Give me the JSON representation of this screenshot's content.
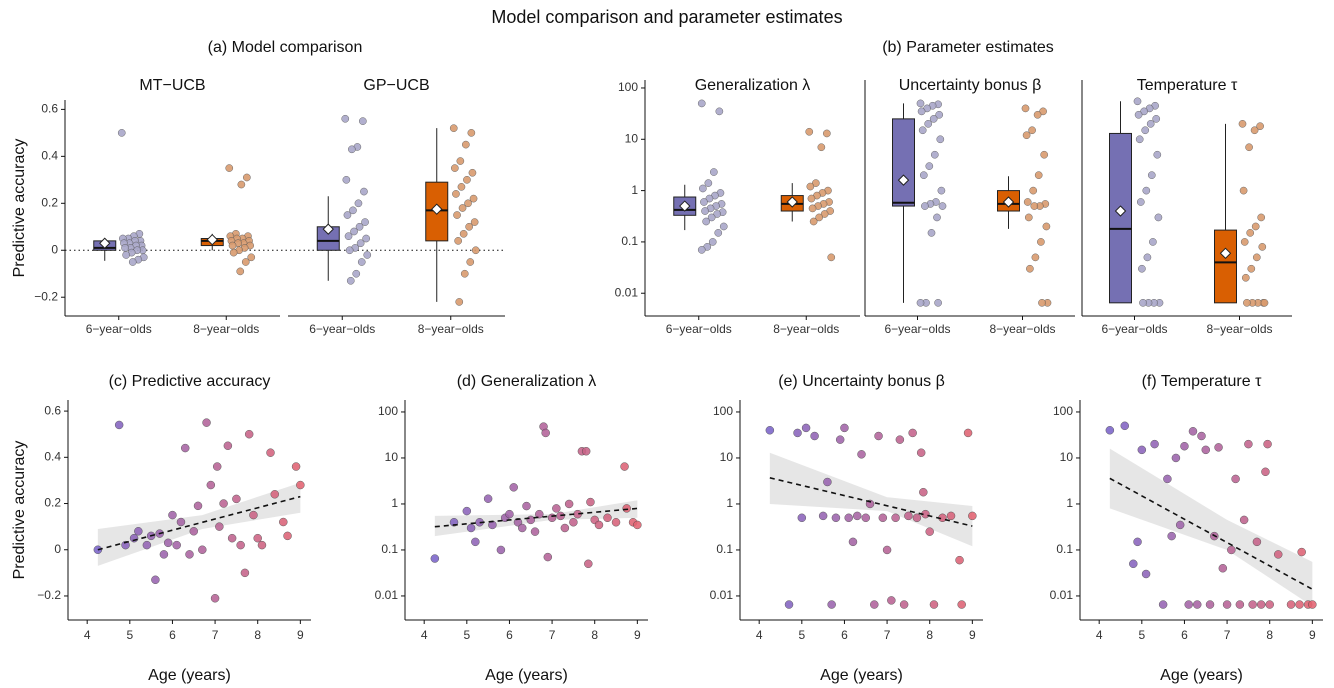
{
  "title": "Model comparison and parameter estimates",
  "chart_data": [
    {
      "type": "box",
      "title": "(a) Model comparison",
      "ylabel": "Predictive accuracy",
      "ylim": [
        -0.28,
        0.64
      ],
      "yticks": [
        {
          "value": -0.2,
          "label": "−0.2"
        },
        0,
        0.2,
        0.4,
        0.6
      ],
      "log": false,
      "hline": 0,
      "facet_y_axis": false,
      "facets": [
        {
          "name": "MT−UCB",
          "categories": [
            "6−year−olds",
            "8−year−olds"
          ],
          "groups": [
            {
              "color": "#7570b3",
              "point_color": "#a9a7c9",
              "whislo": -0.045,
              "q1": 0.0,
              "median": 0.01,
              "q3": 0.04,
              "whishi": 0.05,
              "mean": 0.03,
              "points": [
                0.5,
                0.07,
                0.06,
                0.05,
                0.05,
                0.04,
                0.04,
                0.03,
                0.03,
                0.02,
                0.02,
                0.01,
                0.01,
                0.0,
                0.0,
                -0.01,
                -0.02,
                -0.03,
                -0.04,
                -0.05
              ]
            },
            {
              "color": "#d95f02",
              "point_color": "#d99b6e",
              "whislo": 0.0,
              "q1": 0.02,
              "median": 0.04,
              "q3": 0.05,
              "whishi": 0.07,
              "mean": 0.045,
              "points": [
                0.35,
                0.31,
                0.28,
                0.07,
                0.06,
                0.06,
                0.05,
                0.05,
                0.04,
                0.04,
                0.03,
                0.03,
                0.02,
                0.02,
                0.01,
                0.0,
                -0.01,
                -0.03,
                -0.05,
                -0.09
              ]
            }
          ]
        },
        {
          "name": "GP−UCB",
          "categories": [
            "6−year−olds",
            "8−year−olds"
          ],
          "groups": [
            {
              "color": "#7570b3",
              "point_color": "#a9a7c9",
              "whislo": -0.13,
              "q1": 0.0,
              "median": 0.04,
              "q3": 0.1,
              "whishi": 0.23,
              "mean": 0.09,
              "points": [
                0.56,
                0.55,
                0.44,
                0.43,
                0.3,
                0.25,
                0.2,
                0.17,
                0.15,
                0.12,
                0.1,
                0.08,
                0.06,
                0.05,
                0.03,
                0.01,
                0.0,
                -0.02,
                -0.05,
                -0.1,
                -0.13
              ]
            },
            {
              "color": "#d95f02",
              "point_color": "#d99b6e",
              "whislo": -0.22,
              "q1": 0.04,
              "median": 0.17,
              "q3": 0.29,
              "whishi": 0.52,
              "mean": 0.175,
              "points": [
                0.52,
                0.5,
                0.45,
                0.38,
                0.35,
                0.33,
                0.3,
                0.27,
                0.24,
                0.22,
                0.2,
                0.18,
                0.15,
                0.12,
                0.1,
                0.07,
                0.04,
                0.0,
                -0.05,
                -0.1,
                -0.22
              ]
            }
          ]
        }
      ]
    },
    {
      "type": "box",
      "title": "(b) Parameter estimates",
      "ylim": [
        0.0036,
        143
      ],
      "yticks": [
        0.01,
        0.1,
        1,
        10,
        100
      ],
      "log": true,
      "facet_y_axis": true,
      "facets": [
        {
          "name": "Generalization λ",
          "categories": [
            "6−year−olds",
            "8−year−olds"
          ],
          "groups": [
            {
              "color": "#7570b3",
              "point_color": "#a9a7c9",
              "whislo": 0.17,
              "q1": 0.33,
              "median": 0.42,
              "q3": 0.75,
              "whishi": 1.3,
              "mean": 0.5,
              "points": [
                50,
                35,
                2.3,
                1.4,
                1.1,
                0.9,
                0.8,
                0.7,
                0.6,
                0.55,
                0.5,
                0.45,
                0.4,
                0.38,
                0.35,
                0.3,
                0.25,
                0.2,
                0.15,
                0.1,
                0.08,
                0.07
              ]
            },
            {
              "color": "#d95f02",
              "point_color": "#d99b6e",
              "whislo": 0.25,
              "q1": 0.4,
              "median": 0.55,
              "q3": 0.8,
              "whishi": 1.4,
              "mean": 0.6,
              "points": [
                14,
                13,
                7,
                1.4,
                1.2,
                1.0,
                0.9,
                0.8,
                0.7,
                0.6,
                0.55,
                0.5,
                0.45,
                0.4,
                0.35,
                0.3,
                0.25,
                0.05
              ]
            }
          ]
        },
        {
          "name": "Uncertainty bonus β",
          "categories": [
            "6−year−olds",
            "8−year−olds"
          ],
          "groups": [
            {
              "color": "#7570b3",
              "point_color": "#a9a7c9",
              "whislo": 0.0065,
              "q1": 0.5,
              "median": 0.58,
              "q3": 25,
              "whishi": 50,
              "mean": 1.6,
              "points": [
                50,
                48,
                45,
                40,
                35,
                30,
                25,
                20,
                15,
                10,
                5,
                3,
                2,
                1,
                0.6,
                0.55,
                0.5,
                0.5,
                0.3,
                0.15,
                0.0065,
                0.0065,
                0.0065
              ]
            },
            {
              "color": "#d95f02",
              "point_color": "#d99b6e",
              "whislo": 0.18,
              "q1": 0.4,
              "median": 0.55,
              "q3": 1.0,
              "whishi": 1.9,
              "mean": 0.6,
              "points": [
                40,
                35,
                30,
                15,
                12,
                5,
                2,
                1,
                0.6,
                0.55,
                0.5,
                0.5,
                0.3,
                0.2,
                0.1,
                0.05,
                0.03,
                0.0065,
                0.0065
              ]
            }
          ]
        },
        {
          "name": "Temperature τ",
          "categories": [
            "6−year−olds",
            "8−year−olds"
          ],
          "groups": [
            {
              "color": "#7570b3",
              "point_color": "#a9a7c9",
              "whislo": 0.0065,
              "q1": 0.0065,
              "median": 0.18,
              "q3": 13,
              "whishi": 55,
              "mean": 0.4,
              "points": [
                55,
                45,
                40,
                35,
                30,
                25,
                20,
                15,
                10,
                5,
                2,
                1,
                0.6,
                0.3,
                0.1,
                0.05,
                0.03,
                0.0065,
                0.0065,
                0.0065,
                0.0065
              ]
            },
            {
              "color": "#d95f02",
              "point_color": "#d99b6e",
              "whislo": 0.0065,
              "q1": 0.0065,
              "median": 0.04,
              "q3": 0.17,
              "whishi": 20,
              "mean": 0.06,
              "points": [
                20,
                18,
                15,
                7,
                1,
                0.3,
                0.2,
                0.15,
                0.1,
                0.08,
                0.05,
                0.03,
                0.02,
                0.0065,
                0.0065,
                0.0065,
                0.0065,
                0.0065
              ]
            }
          ]
        }
      ]
    },
    {
      "type": "scatter",
      "title": "(c) Predictive accuracy",
      "xlabel": "Age (years)",
      "ylabel": "Predictive accuracy",
      "xlim": [
        3.55,
        9.25
      ],
      "xticks": [
        4,
        5,
        6,
        7,
        8,
        9
      ],
      "ylim": [
        -0.304,
        0.648
      ],
      "yticks": [
        {
          "value": -0.2,
          "label": "−0.2"
        },
        0,
        0.2,
        0.4,
        0.6
      ],
      "log": false,
      "colormap": [
        "#6b64d6",
        "#e8636c"
      ],
      "x": [
        4.25,
        4.75,
        4.9,
        5.1,
        5.2,
        5.4,
        5.5,
        5.6,
        5.7,
        5.8,
        5.9,
        6.0,
        6.1,
        6.2,
        6.3,
        6.4,
        6.5,
        6.6,
        6.7,
        6.8,
        6.9,
        7.0,
        7.05,
        7.1,
        7.2,
        7.3,
        7.4,
        7.5,
        7.6,
        7.7,
        7.8,
        7.9,
        8.0,
        8.1,
        8.3,
        8.4,
        8.6,
        8.7,
        8.9,
        9.0
      ],
      "y": [
        0.0,
        0.54,
        0.02,
        0.05,
        0.08,
        0.02,
        0.06,
        -0.13,
        0.07,
        -0.02,
        0.03,
        0.15,
        0.02,
        0.12,
        0.44,
        -0.02,
        0.08,
        0.19,
        0.0,
        0.55,
        0.28,
        -0.21,
        0.36,
        0.1,
        0.2,
        0.45,
        0.05,
        0.22,
        0.02,
        -0.1,
        0.5,
        0.15,
        0.05,
        0.02,
        0.42,
        0.24,
        0.12,
        0.06,
        0.36,
        0.28
      ],
      "trend": {
        "x": [
          4.25,
          9
        ],
        "y": [
          0.0,
          0.23
        ]
      },
      "band": {
        "x": [
          4.25,
          6.7,
          9
        ],
        "lower": [
          -0.07,
          0.09,
          0.16
        ],
        "upper": [
          0.09,
          0.15,
          0.29
        ]
      }
    },
    {
      "type": "scatter",
      "title": "(d) Generalization λ",
      "xlabel": "Age (years)",
      "xlim": [
        3.55,
        9.25
      ],
      "xticks": [
        4,
        5,
        6,
        7,
        8,
        9
      ],
      "ylim": [
        0.003,
        182
      ],
      "yticks": [
        0.01,
        0.1,
        1,
        10,
        100
      ],
      "log": true,
      "colormap": [
        "#6b64d6",
        "#e8636c"
      ],
      "x": [
        4.25,
        4.7,
        5.0,
        5.1,
        5.2,
        5.3,
        5.5,
        5.6,
        5.8,
        5.9,
        6.0,
        6.1,
        6.2,
        6.3,
        6.4,
        6.5,
        6.6,
        6.7,
        6.8,
        6.85,
        6.9,
        7.0,
        7.1,
        7.2,
        7.3,
        7.4,
        7.5,
        7.6,
        7.7,
        7.8,
        7.85,
        7.9,
        8.0,
        8.1,
        8.3,
        8.5,
        8.7,
        8.75,
        8.9,
        9.0
      ],
      "y": [
        0.065,
        0.4,
        0.7,
        0.3,
        0.15,
        0.4,
        1.3,
        0.35,
        0.1,
        0.5,
        0.6,
        2.3,
        0.4,
        0.3,
        0.9,
        0.45,
        0.25,
        0.6,
        48,
        35,
        0.07,
        0.5,
        0.8,
        0.55,
        0.3,
        1.0,
        0.4,
        0.6,
        14,
        14,
        0.05,
        1.1,
        0.45,
        0.35,
        0.5,
        0.4,
        6.5,
        0.8,
        0.4,
        0.35
      ],
      "trend": {
        "x": [
          4.25,
          9
        ],
        "y": [
          0.32,
          0.8
        ]
      },
      "band": {
        "x": [
          4.25,
          7,
          9
        ],
        "lower": [
          0.2,
          0.45,
          0.5
        ],
        "upper": [
          0.55,
          0.6,
          1.2
        ]
      }
    },
    {
      "type": "scatter",
      "title": "(e) Uncertainty bonus β",
      "xlabel": "Age (years)",
      "xlim": [
        3.55,
        9.25
      ],
      "xticks": [
        4,
        5,
        6,
        7,
        8,
        9
      ],
      "ylim": [
        0.003,
        182
      ],
      "yticks": [
        0.01,
        0.1,
        1,
        10,
        100
      ],
      "log": true,
      "colormap": [
        "#6b64d6",
        "#e8636c"
      ],
      "x": [
        4.25,
        4.7,
        4.9,
        5.0,
        5.1,
        5.3,
        5.5,
        5.6,
        5.7,
        5.8,
        5.9,
        6.0,
        6.1,
        6.2,
        6.3,
        6.4,
        6.5,
        6.6,
        6.7,
        6.8,
        6.9,
        7.0,
        7.1,
        7.2,
        7.3,
        7.4,
        7.5,
        7.6,
        7.7,
        7.8,
        7.85,
        7.9,
        8.0,
        8.1,
        8.3,
        8.5,
        8.7,
        8.75,
        8.9,
        9.0
      ],
      "y": [
        40,
        0.0065,
        35,
        0.5,
        45,
        30,
        0.55,
        3,
        0.0065,
        0.5,
        25,
        45,
        0.5,
        0.15,
        0.55,
        12,
        0.5,
        1.0,
        0.0065,
        30,
        0.5,
        0.1,
        0.008,
        0.5,
        25,
        0.0065,
        0.55,
        35,
        0.5,
        13,
        1.8,
        0.6,
        0.25,
        0.0065,
        0.5,
        0.55,
        0.06,
        0.0065,
        35,
        0.55
      ],
      "trend": {
        "x": [
          4.25,
          9
        ],
        "y": [
          3.7,
          0.33
        ]
      },
      "band": {
        "x": [
          4.25,
          7,
          9
        ],
        "lower": [
          1,
          0.7,
          0.12
        ],
        "upper": [
          13,
          1.4,
          0.9
        ]
      }
    },
    {
      "type": "scatter",
      "title": "(f) Temperature τ",
      "xlabel": "Age (years)",
      "xlim": [
        3.55,
        9.25
      ],
      "xticks": [
        4,
        5,
        6,
        7,
        8,
        9
      ],
      "ylim": [
        0.003,
        182
      ],
      "yticks": [
        0.01,
        0.1,
        1,
        10,
        100
      ],
      "log": true,
      "colormap": [
        "#6b64d6",
        "#e8636c"
      ],
      "x": [
        4.25,
        4.6,
        4.8,
        4.9,
        5.0,
        5.1,
        5.3,
        5.5,
        5.6,
        5.7,
        5.8,
        5.9,
        6.0,
        6.1,
        6.2,
        6.3,
        6.4,
        6.5,
        6.6,
        6.7,
        6.8,
        6.9,
        7.0,
        7.1,
        7.2,
        7.3,
        7.4,
        7.5,
        7.6,
        7.7,
        7.8,
        7.9,
        7.95,
        8.0,
        8.2,
        8.5,
        8.7,
        8.75,
        8.9,
        9.0
      ],
      "y": [
        40,
        50,
        0.05,
        0.15,
        15,
        0.03,
        20,
        0.0065,
        3.5,
        0.2,
        10,
        0.35,
        18,
        0.0065,
        38,
        0.0065,
        30,
        15,
        0.0065,
        0.2,
        17,
        0.04,
        0.0065,
        0.1,
        3.5,
        0.0065,
        0.45,
        20,
        0.0065,
        0.15,
        0.0065,
        5,
        20,
        0.0065,
        0.08,
        0.0065,
        0.0065,
        0.09,
        0.0065,
        0.0065
      ],
      "trend": {
        "x": [
          4.25,
          9
        ],
        "y": [
          3.6,
          0.014
        ]
      },
      "band": {
        "x": [
          4.25,
          7,
          9
        ],
        "lower": [
          0.8,
          0.1,
          0.006
        ],
        "upper": [
          16,
          0.45,
          0.055
        ]
      }
    }
  ]
}
